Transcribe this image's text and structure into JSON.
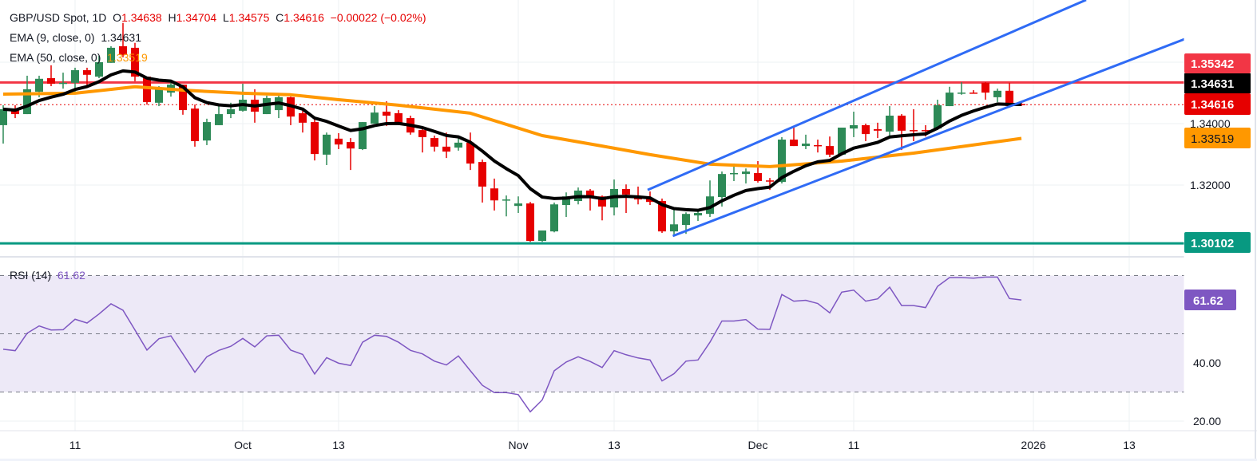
{
  "header": {
    "symbol": "GBP/USD Spot, 1D",
    "o_label": "O",
    "open": "1.34638",
    "h_label": "H",
    "high": "1.34704",
    "l_label": "L",
    "low": "1.34575",
    "c_label": "C",
    "close": "1.34616",
    "change": "−0.00022 (−0.02%)"
  },
  "indicators": {
    "ema9": {
      "label": "EMA (9, close, 0)",
      "value": "1.34631"
    },
    "ema50": {
      "label": "EMA (50, close, 0)",
      "value": "1.33519"
    },
    "rsi": {
      "label": "RSI (14)",
      "value": "61.62"
    }
  },
  "price_scale": {
    "ticks": [
      "1.34000",
      "1.32000"
    ],
    "labels": {
      "resistance": "1.35342",
      "ema9": "1.34631",
      "last": "1.34616",
      "ema50": "1.33519",
      "support": "1.30102"
    }
  },
  "rsi_scale": {
    "ticks": [
      "40.00",
      "20.00"
    ],
    "label": "61.62"
  },
  "colors": {
    "up": "#2d8a57",
    "down": "#e60000",
    "ema9": "#000000",
    "ema50": "#ff9800",
    "resistance": "#f23645",
    "support": "#089981",
    "trendline": "#2f6bf5",
    "rsi": "#7e57c2",
    "rsi_fill": "#ede9f7",
    "grid": "#eef0f3"
  },
  "chart_data": {
    "type": "candlestick",
    "ohlc": [
      [
        1.3395,
        1.346,
        1.3335,
        1.3447
      ],
      [
        1.3444,
        1.346,
        1.3418,
        1.3431
      ],
      [
        1.3431,
        1.3556,
        1.3431,
        1.3512
      ],
      [
        1.3504,
        1.3556,
        1.3486,
        1.3546
      ],
      [
        1.3548,
        1.359,
        1.3522,
        1.353
      ],
      [
        1.353,
        1.3566,
        1.3514,
        1.3533
      ],
      [
        1.3533,
        1.3582,
        1.3496,
        1.3574
      ],
      [
        1.3574,
        1.3582,
        1.3525,
        1.3559
      ],
      [
        1.3553,
        1.3621,
        1.3548,
        1.36
      ],
      [
        1.3598,
        1.3652,
        1.3598,
        1.3647
      ],
      [
        1.3652,
        1.3728,
        1.3616,
        1.3624
      ],
      [
        1.3647,
        1.3663,
        1.3538,
        1.3553
      ],
      [
        1.3553,
        1.3553,
        1.3462,
        1.347
      ],
      [
        1.3468,
        1.3522,
        1.3457,
        1.3514
      ],
      [
        1.3501,
        1.3535,
        1.3488,
        1.3527
      ],
      [
        1.3527,
        1.3527,
        1.3429,
        1.3444
      ],
      [
        1.3449,
        1.3462,
        1.3325,
        1.3343
      ],
      [
        1.3345,
        1.3416,
        1.333,
        1.3405
      ],
      [
        1.3395,
        1.3457,
        1.3395,
        1.3431
      ],
      [
        1.3431,
        1.3468,
        1.3418,
        1.3447
      ],
      [
        1.3442,
        1.353,
        1.3439,
        1.3478
      ],
      [
        1.3478,
        1.3512,
        1.3403,
        1.3439
      ],
      [
        1.3431,
        1.3491,
        1.3431,
        1.3483
      ],
      [
        1.3444,
        1.3491,
        1.3418,
        1.3486
      ],
      [
        1.3486,
        1.3488,
        1.3395,
        1.3423
      ],
      [
        1.3434,
        1.3442,
        1.3371,
        1.3403
      ],
      [
        1.3405,
        1.3418,
        1.328,
        1.3301
      ],
      [
        1.3299,
        1.3371,
        1.3265,
        1.3364
      ],
      [
        1.3351,
        1.3369,
        1.3317,
        1.3332
      ],
      [
        1.334,
        1.3353,
        1.3249,
        1.3319
      ],
      [
        1.3317,
        1.3405,
        1.3314,
        1.3405
      ],
      [
        1.34,
        1.3457,
        1.34,
        1.3436
      ],
      [
        1.3439,
        1.3473,
        1.3392,
        1.3426
      ],
      [
        1.3434,
        1.3444,
        1.3395,
        1.3403
      ],
      [
        1.3418,
        1.3426,
        1.3364,
        1.3371
      ],
      [
        1.3379,
        1.3387,
        1.3306,
        1.3356
      ],
      [
        1.3353,
        1.3361,
        1.3309,
        1.3325
      ],
      [
        1.3325,
        1.3371,
        1.3288,
        1.3309
      ],
      [
        1.3322,
        1.3356,
        1.3312,
        1.3338
      ],
      [
        1.3338,
        1.3371,
        1.3249,
        1.327
      ],
      [
        1.3275,
        1.3283,
        1.3143,
        1.3195
      ],
      [
        1.3189,
        1.3221,
        1.3117,
        1.315
      ],
      [
        1.315,
        1.3166,
        1.3098,
        1.3153
      ],
      [
        1.3132,
        1.3163,
        1.3109,
        1.314
      ],
      [
        1.314,
        1.3145,
        1.3015,
        1.3018
      ],
      [
        1.3018,
        1.3052,
        1.3015,
        1.3052
      ],
      [
        1.3049,
        1.3143,
        1.3046,
        1.3137
      ],
      [
        1.3135,
        1.3176,
        1.3096,
        1.3163
      ],
      [
        1.3148,
        1.3192,
        1.3137,
        1.3182
      ],
      [
        1.3182,
        1.3187,
        1.3117,
        1.3161
      ],
      [
        1.3163,
        1.3166,
        1.3085,
        1.313
      ],
      [
        1.3127,
        1.3218,
        1.3101,
        1.3187
      ],
      [
        1.3187,
        1.3202,
        1.3109,
        1.3169
      ],
      [
        1.3163,
        1.3195,
        1.3137,
        1.3153
      ],
      [
        1.3156,
        1.3179,
        1.3135,
        1.3145
      ],
      [
        1.3148,
        1.3156,
        1.3044,
        1.3049
      ],
      [
        1.3049,
        1.3124,
        1.3039,
        1.3072
      ],
      [
        1.307,
        1.3111,
        1.3041,
        1.3106
      ],
      [
        1.3101,
        1.3119,
        1.3083,
        1.3109
      ],
      [
        1.3106,
        1.3215,
        1.3096,
        1.3163
      ],
      [
        1.3161,
        1.3244,
        1.313,
        1.3236
      ],
      [
        1.3236,
        1.327,
        1.3213,
        1.3239
      ],
      [
        1.3236,
        1.3254,
        1.3205,
        1.3244
      ],
      [
        1.3239,
        1.3278,
        1.3208,
        1.3213
      ],
      [
        1.3215,
        1.3223,
        1.3184,
        1.3213
      ],
      [
        1.321,
        1.3356,
        1.3205,
        1.3348
      ],
      [
        1.3348,
        1.3387,
        1.3327,
        1.3327
      ],
      [
        1.3327,
        1.3364,
        1.3317,
        1.3335
      ],
      [
        1.333,
        1.3348,
        1.3306,
        1.3327
      ],
      [
        1.3327,
        1.3358,
        1.3291,
        1.3299
      ],
      [
        1.3299,
        1.3387,
        1.3299,
        1.3387
      ],
      [
        1.3384,
        1.3439,
        1.3356,
        1.3395
      ],
      [
        1.3395,
        1.34,
        1.3343,
        1.3366
      ],
      [
        1.3382,
        1.3403,
        1.3353,
        1.3377
      ],
      [
        1.3374,
        1.3457,
        1.3356,
        1.3426
      ],
      [
        1.3426,
        1.3431,
        1.3314,
        1.3377
      ],
      [
        1.3379,
        1.3447,
        1.3343,
        1.3377
      ],
      [
        1.3379,
        1.3395,
        1.3358,
        1.3377
      ],
      [
        1.3384,
        1.3478,
        1.3379,
        1.346
      ],
      [
        1.3457,
        1.352,
        1.3457,
        1.3501
      ],
      [
        1.3499,
        1.3535,
        1.3494,
        1.3501
      ],
      [
        1.3501,
        1.3509,
        1.3499,
        1.3499
      ],
      [
        1.3533,
        1.3535,
        1.3478,
        1.3501
      ],
      [
        1.3486,
        1.3514,
        1.347,
        1.3507
      ],
      [
        1.3507,
        1.3533,
        1.3452,
        1.3457
      ],
      [
        1.34638,
        1.34704,
        1.34575,
        1.34616
      ]
    ],
    "ema50_points": [
      [
        0,
        1.3496
      ],
      [
        6,
        1.3499
      ],
      [
        11,
        1.352
      ],
      [
        15,
        1.3509
      ],
      [
        20,
        1.3499
      ],
      [
        24,
        1.3494
      ],
      [
        28,
        1.3478
      ],
      [
        33,
        1.346
      ],
      [
        39,
        1.3434
      ],
      [
        45,
        1.3361
      ],
      [
        50,
        1.3327
      ],
      [
        54,
        1.3299
      ],
      [
        59,
        1.3268
      ],
      [
        64,
        1.326
      ],
      [
        70,
        1.3278
      ],
      [
        76,
        1.3304
      ],
      [
        85,
        1.33519
      ]
    ],
    "rsi": [
      44.7,
      44.2,
      50.2,
      52.7,
      51.3,
      51.4,
      55.0,
      53.7,
      56.8,
      60.3,
      58.1,
      51.3,
      44.4,
      48.3,
      49.3,
      43.1,
      36.8,
      42.1,
      44.3,
      45.7,
      48.4,
      45.5,
      49.3,
      49.5,
      44.4,
      42.9,
      36.2,
      41.8,
      39.9,
      39.1,
      47.1,
      49.5,
      49.1,
      47.1,
      44.3,
      43.1,
      40.6,
      39.3,
      42.4,
      37.3,
      32.3,
      29.8,
      29.8,
      29.1,
      23.2,
      27.3,
      37.3,
      40.3,
      42.1,
      40.5,
      38.4,
      44.2,
      42.8,
      41.7,
      41.0,
      33.8,
      36.3,
      40.6,
      41.0,
      47.1,
      54.4,
      54.4,
      54.9,
      51.6,
      51.5,
      63.5,
      61.2,
      61.5,
      60.4,
      57.2,
      64.3,
      65.0,
      61.2,
      62.0,
      66.0,
      59.7,
      59.7,
      59.0,
      66.3,
      69.3,
      69.3,
      69.1,
      69.5,
      69.5,
      62.1,
      61.62
    ],
    "levels": {
      "resistance": 1.35342,
      "support": 1.30102
    },
    "rsi_levels": [
      70,
      50,
      30
    ],
    "trendlines": [
      {
        "from": [
          53.8,
          1.3184
        ],
        "to": [
          90.4,
          1.3803
        ]
      },
      {
        "from": [
          55.9,
          1.3034
        ],
        "to": [
          98.6,
          1.3675
        ]
      }
    ],
    "x_ticks": [
      {
        "label": "11",
        "bar": 6
      },
      {
        "label": "Oct",
        "bar": 20
      },
      {
        "label": "13",
        "bar": 28
      },
      {
        "label": "Nov",
        "bar": 43
      },
      {
        "label": "13",
        "bar": 51
      },
      {
        "label": "Dec",
        "bar": 63
      },
      {
        "label": "11",
        "bar": 71
      },
      {
        "label": "2026",
        "bar": 86
      },
      {
        "label": "13",
        "bar": 94
      }
    ],
    "price_grid": [
      1.36,
      1.34,
      1.32
    ],
    "rsi_grid": [
      60,
      40,
      20
    ],
    "grid": true
  }
}
